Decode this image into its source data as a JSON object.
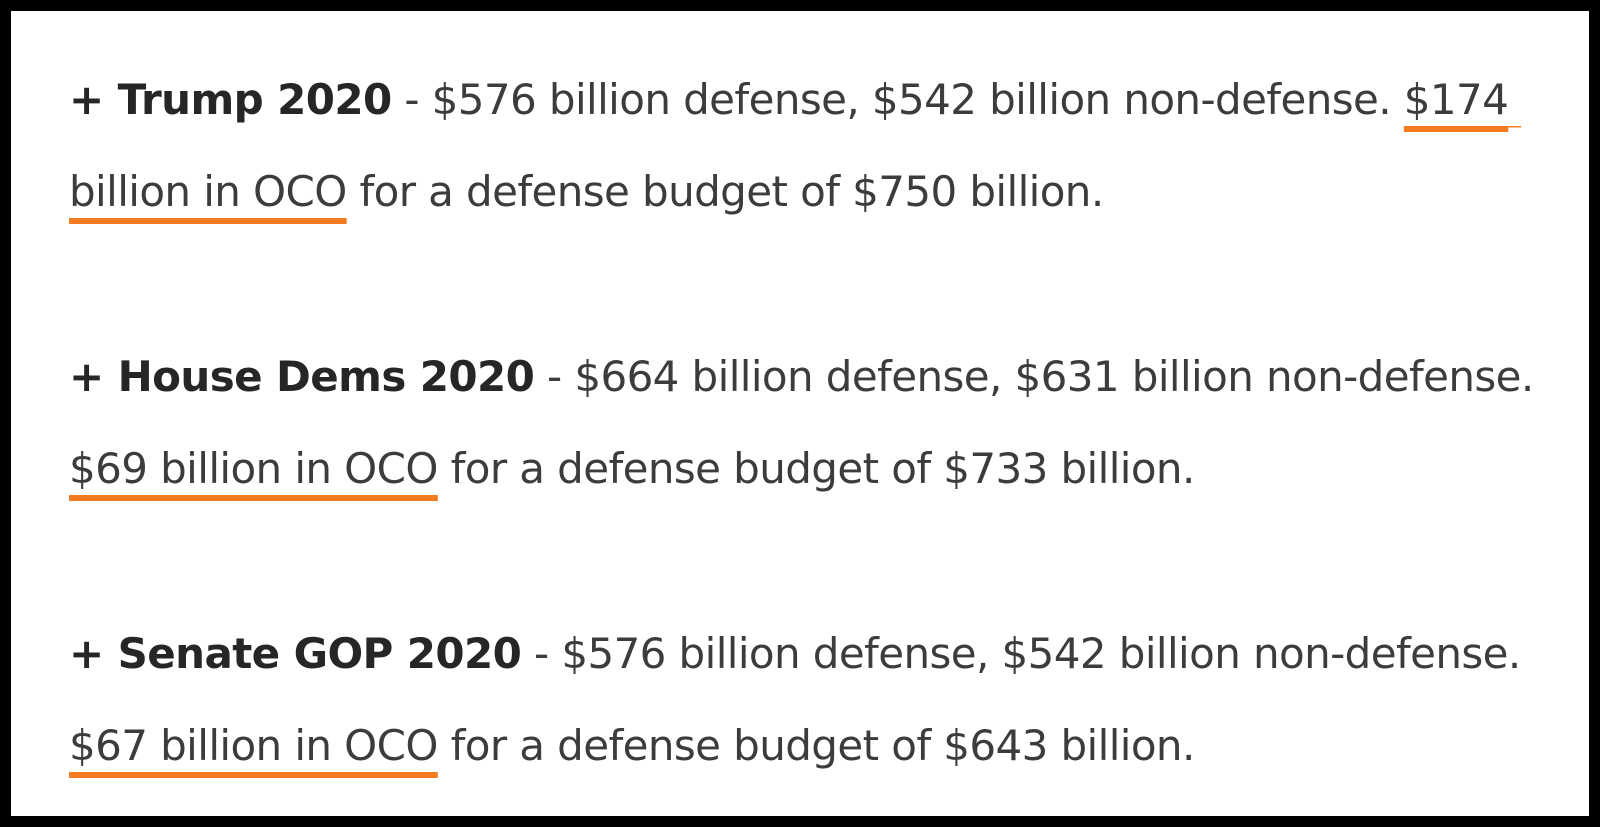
{
  "entries": [
    {
      "heading": "+ Trump 2020",
      "summary": " - $576 billion defense, $542 billion non-defense.",
      "spacer": " ",
      "oco": "$174 billion in OCO",
      "tail": " for a defense budget of $750 billion."
    },
    {
      "heading": "+ House Dems 2020",
      "summary": " - $664 billion defense, $631 billion non-defense.",
      "spacer": "  ",
      "oco": "$69 billion in OCO",
      "tail": " for a defense budget of $733 billion."
    },
    {
      "heading": "+ Senate GOP 2020",
      "summary": " - $576 billion defense, $542 billion non-defense.",
      "spacer": "  ",
      "oco": "$67 billion in OCO",
      "tail": " for a defense budget of $643 billion."
    }
  ],
  "colors": {
    "underline": "#f47c20",
    "text": "#3c3c3c",
    "heading": "#262626",
    "frame": "#000000"
  }
}
